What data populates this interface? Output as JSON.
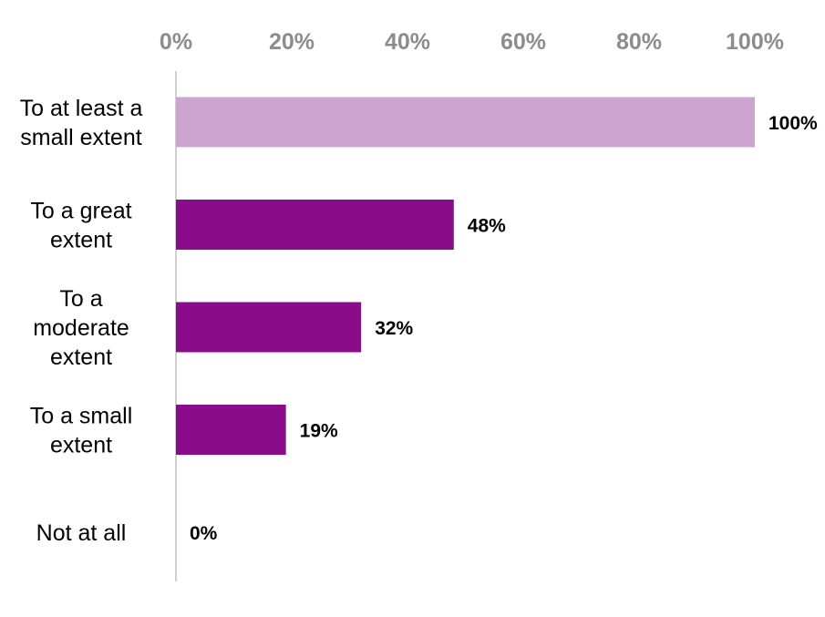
{
  "chart_data": {
    "type": "bar",
    "orientation": "horizontal",
    "categories": [
      [
        "To at least a",
        "small extent"
      ],
      [
        "To a great",
        "extent"
      ],
      [
        "To a",
        "moderate",
        "extent"
      ],
      [
        "To a small",
        "extent"
      ],
      [
        "Not at all"
      ]
    ],
    "values": [
      100,
      48,
      32,
      19,
      0
    ],
    "data_labels": [
      "100%",
      "48%",
      "32%",
      "19%",
      "0%"
    ],
    "bar_colors": [
      "#cda4d0",
      "#8b0c8b",
      "#8b0c8b",
      "#8b0c8b",
      "#8b0c8b"
    ],
    "x_ticks": [
      "0%",
      "20%",
      "40%",
      "60%",
      "80%",
      "100%"
    ],
    "xlim": [
      0,
      100
    ],
    "x_axis_position": "top",
    "grid": false,
    "legend": "none",
    "title": "",
    "xlabel": "",
    "ylabel": ""
  },
  "colors": {
    "axis_line": "#bfbfbf",
    "tick_text": "#8c8c8c",
    "label_text": "#000000"
  }
}
